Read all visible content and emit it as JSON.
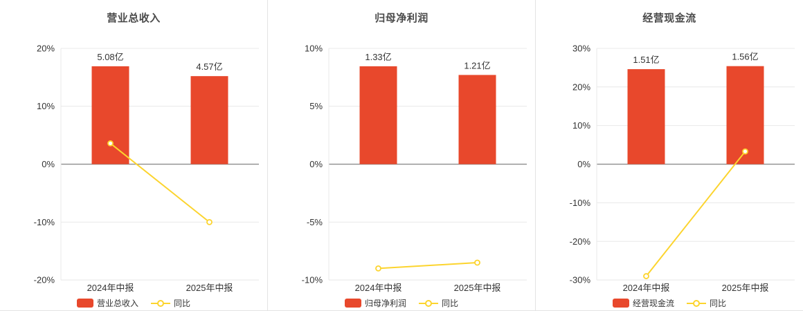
{
  "style": {
    "bar_color": "#e8482c",
    "line_color": "#fcd42e",
    "grid_color": "#e8e8e8",
    "zero_line_color": "#8c8c8c",
    "text_color": "#333333",
    "title_color": "#4a4a4a"
  },
  "chart_data": [
    {
      "type": "bar+line",
      "title": "营业总收入",
      "categories": [
        "2024年中报",
        "2025年中报"
      ],
      "bars": {
        "name": "营业总收入",
        "labels": [
          "5.08亿",
          "4.57亿"
        ],
        "heights_pct": [
          16.9,
          15.2
        ]
      },
      "line": {
        "name": "同比",
        "values_pct": [
          3.6,
          -10.0
        ]
      },
      "ylim": [
        -20,
        20
      ],
      "yticks": [
        20,
        10,
        0,
        -10,
        -20
      ],
      "legend_position": "bottom",
      "grid": true
    },
    {
      "type": "bar+line",
      "title": "归母净利润",
      "categories": [
        "2024年中报",
        "2025年中报"
      ],
      "bars": {
        "name": "归母净利润",
        "labels": [
          "1.33亿",
          "1.21亿"
        ],
        "heights_pct": [
          8.45,
          7.7
        ]
      },
      "line": {
        "name": "同比",
        "values_pct": [
          -9.0,
          -8.5
        ]
      },
      "ylim": [
        -10,
        10
      ],
      "yticks": [
        10,
        5,
        0,
        -5,
        -10
      ],
      "legend_position": "bottom",
      "grid": true
    },
    {
      "type": "bar+line",
      "title": "经营现金流",
      "categories": [
        "2024年中报",
        "2025年中报"
      ],
      "bars": {
        "name": "经营现金流",
        "labels": [
          "1.51亿",
          "1.56亿"
        ],
        "heights_pct": [
          24.6,
          25.4
        ]
      },
      "line": {
        "name": "同比",
        "values_pct": [
          -29.0,
          3.3
        ]
      },
      "ylim": [
        -30,
        30
      ],
      "yticks": [
        30,
        20,
        10,
        0,
        -10,
        -20,
        -30
      ],
      "legend_position": "bottom",
      "grid": true
    }
  ]
}
